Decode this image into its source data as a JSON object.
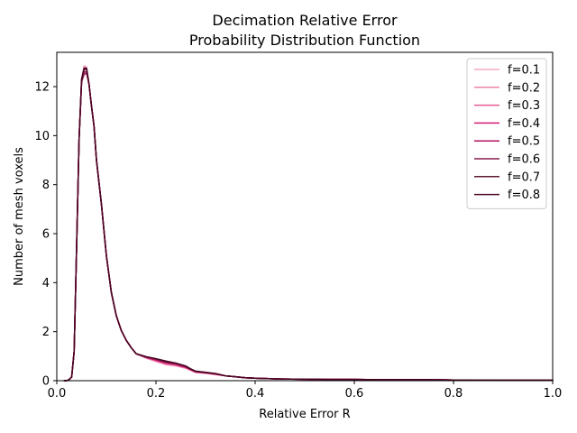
{
  "chart_data": {
    "type": "line",
    "title": "Decimation Relative Error",
    "subtitle": "Probability Distribution Function",
    "xlabel": "Relative Error R",
    "ylabel": "Number of mesh voxels",
    "xlim": [
      0,
      1
    ],
    "ylim": [
      0,
      13.4
    ],
    "xticks": [
      "0.0",
      "0.2",
      "0.4",
      "0.6",
      "0.8",
      "1.0"
    ],
    "xtick_values": [
      0,
      0.2,
      0.4,
      0.6,
      0.8,
      1.0
    ],
    "yticks": [
      "0",
      "2",
      "4",
      "6",
      "8",
      "10",
      "12"
    ],
    "ytick_values": [
      0,
      2,
      4,
      6,
      8,
      10,
      12
    ],
    "grid": false,
    "legend_position": "top-right",
    "x": [
      0.015,
      0.02,
      0.025,
      0.03,
      0.035,
      0.04,
      0.045,
      0.05,
      0.055,
      0.06,
      0.065,
      0.07,
      0.075,
      0.08,
      0.09,
      0.1,
      0.11,
      0.12,
      0.13,
      0.14,
      0.15,
      0.16,
      0.18,
      0.2,
      0.22,
      0.24,
      0.26,
      0.27,
      0.28,
      0.3,
      0.32,
      0.34,
      0.36,
      0.38,
      0.4,
      0.45,
      0.5,
      0.55,
      0.6,
      0.65,
      0.7,
      0.75,
      0.8,
      0.9,
      1.0
    ],
    "series": [
      {
        "name": "f=0.1",
        "color": "#f4a6c6",
        "values": [
          0,
          0,
          0.05,
          0.15,
          1.2,
          5.5,
          9.9,
          12.3,
          12.85,
          12.8,
          12.1,
          11.2,
          10.4,
          9.0,
          7.2,
          5.1,
          3.6,
          2.65,
          2.05,
          1.65,
          1.35,
          1.1,
          0.92,
          0.78,
          0.65,
          0.6,
          0.5,
          0.42,
          0.33,
          0.3,
          0.25,
          0.2,
          0.16,
          0.12,
          0.1,
          0.07,
          0.06,
          0.05,
          0.05,
          0.04,
          0.04,
          0.04,
          0.03,
          0.02,
          0.02
        ]
      },
      {
        "name": "f=0.2",
        "color": "#ee82ad",
        "values": [
          0,
          0,
          0.05,
          0.15,
          1.2,
          5.5,
          9.9,
          12.3,
          12.8,
          12.75,
          12.1,
          11.2,
          10.4,
          9.0,
          7.2,
          5.1,
          3.6,
          2.65,
          2.05,
          1.65,
          1.35,
          1.1,
          0.93,
          0.8,
          0.68,
          0.62,
          0.52,
          0.43,
          0.34,
          0.31,
          0.25,
          0.2,
          0.16,
          0.12,
          0.1,
          0.07,
          0.06,
          0.05,
          0.05,
          0.04,
          0.04,
          0.04,
          0.03,
          0.02,
          0.02
        ]
      },
      {
        "name": "f=0.3",
        "color": "#e75a96",
        "values": [
          0,
          0,
          0.05,
          0.15,
          1.2,
          5.5,
          9.9,
          12.3,
          12.7,
          12.7,
          12.1,
          11.2,
          10.4,
          9.0,
          7.2,
          5.1,
          3.6,
          2.65,
          2.05,
          1.65,
          1.35,
          1.1,
          0.94,
          0.82,
          0.7,
          0.64,
          0.53,
          0.44,
          0.35,
          0.31,
          0.26,
          0.2,
          0.16,
          0.12,
          0.1,
          0.07,
          0.06,
          0.05,
          0.05,
          0.04,
          0.04,
          0.04,
          0.03,
          0.02,
          0.02
        ]
      },
      {
        "name": "f=0.4",
        "color": "#d61a75",
        "values": [
          0,
          0,
          0.05,
          0.15,
          1.2,
          5.5,
          9.9,
          12.2,
          12.6,
          12.6,
          12.1,
          11.2,
          10.4,
          9.0,
          7.2,
          5.1,
          3.6,
          2.65,
          2.05,
          1.65,
          1.35,
          1.1,
          0.95,
          0.84,
          0.72,
          0.66,
          0.55,
          0.45,
          0.36,
          0.32,
          0.27,
          0.2,
          0.16,
          0.12,
          0.1,
          0.07,
          0.06,
          0.05,
          0.05,
          0.04,
          0.04,
          0.04,
          0.03,
          0.02,
          0.02
        ]
      },
      {
        "name": "f=0.5",
        "color": "#b0135c",
        "values": [
          0,
          0,
          0.05,
          0.15,
          1.2,
          5.5,
          9.9,
          12.2,
          12.5,
          12.55,
          12.1,
          11.2,
          10.4,
          9.0,
          7.2,
          5.1,
          3.6,
          2.65,
          2.05,
          1.65,
          1.35,
          1.1,
          0.96,
          0.86,
          0.74,
          0.68,
          0.56,
          0.46,
          0.37,
          0.33,
          0.28,
          0.2,
          0.16,
          0.12,
          0.1,
          0.07,
          0.06,
          0.05,
          0.05,
          0.04,
          0.04,
          0.04,
          0.03,
          0.02,
          0.02
        ]
      },
      {
        "name": "f=0.6",
        "color": "#8a1c4e",
        "values": [
          0,
          0,
          0.05,
          0.15,
          1.2,
          5.5,
          9.9,
          12.2,
          12.6,
          12.6,
          12.1,
          11.2,
          10.4,
          9.0,
          7.2,
          5.1,
          3.6,
          2.65,
          2.05,
          1.65,
          1.35,
          1.1,
          0.97,
          0.88,
          0.76,
          0.7,
          0.58,
          0.47,
          0.38,
          0.33,
          0.28,
          0.2,
          0.16,
          0.12,
          0.1,
          0.07,
          0.06,
          0.05,
          0.05,
          0.04,
          0.04,
          0.04,
          0.03,
          0.02,
          0.02
        ]
      },
      {
        "name": "f=0.7",
        "color": "#5e1a36",
        "values": [
          0,
          0,
          0.05,
          0.15,
          1.2,
          5.5,
          9.9,
          12.2,
          12.7,
          12.7,
          12.1,
          11.2,
          10.4,
          9.0,
          7.2,
          5.1,
          3.6,
          2.65,
          2.05,
          1.65,
          1.35,
          1.1,
          0.97,
          0.89,
          0.78,
          0.71,
          0.59,
          0.48,
          0.38,
          0.34,
          0.29,
          0.2,
          0.16,
          0.12,
          0.1,
          0.07,
          0.06,
          0.05,
          0.05,
          0.04,
          0.04,
          0.04,
          0.03,
          0.02,
          0.02
        ]
      },
      {
        "name": "f=0.8",
        "color": "#4a0524",
        "values": [
          0,
          0,
          0.05,
          0.15,
          1.2,
          5.5,
          9.9,
          12.3,
          12.75,
          12.75,
          12.1,
          11.2,
          10.4,
          9.0,
          7.2,
          5.1,
          3.6,
          2.65,
          2.05,
          1.65,
          1.35,
          1.1,
          0.98,
          0.9,
          0.8,
          0.72,
          0.6,
          0.48,
          0.39,
          0.34,
          0.29,
          0.2,
          0.16,
          0.12,
          0.1,
          0.07,
          0.06,
          0.05,
          0.05,
          0.04,
          0.04,
          0.04,
          0.03,
          0.02,
          0.02
        ]
      }
    ]
  }
}
